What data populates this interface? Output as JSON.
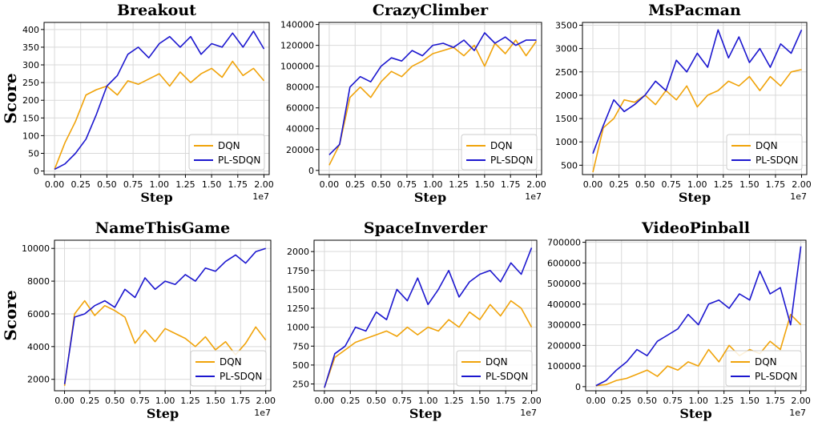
{
  "colors": {
    "dqn": "#f0a30a",
    "plsdqn": "#1c17cf",
    "grid": "#d9d9d9",
    "axis": "#000000"
  },
  "chart_data": [
    {
      "type": "line",
      "title": "Breakout",
      "xlabel": "Step",
      "ylabel": "Score",
      "x_exponent": "1e7",
      "xlim": [
        -0.1,
        2.05
      ],
      "ylim": [
        -10,
        420
      ],
      "xticks": [
        "0.00",
        "0.25",
        "0.50",
        "0.75",
        "1.00",
        "1.25",
        "1.50",
        "1.75",
        "2.00"
      ],
      "yticks": [
        0,
        50,
        100,
        150,
        200,
        250,
        300,
        350,
        400
      ],
      "legend_position": "lower-right",
      "x": [
        0,
        0.1,
        0.2,
        0.3,
        0.4,
        0.5,
        0.6,
        0.7,
        0.8,
        0.9,
        1.0,
        1.1,
        1.2,
        1.3,
        1.4,
        1.5,
        1.6,
        1.7,
        1.8,
        1.9,
        2.0
      ],
      "series": [
        {
          "name": "DQN",
          "values": [
            5,
            80,
            140,
            215,
            230,
            240,
            215,
            255,
            245,
            260,
            275,
            240,
            280,
            250,
            275,
            290,
            265,
            310,
            270,
            290,
            255
          ]
        },
        {
          "name": "PL-SDQN",
          "values": [
            5,
            20,
            50,
            90,
            160,
            240,
            270,
            330,
            350,
            320,
            360,
            380,
            350,
            380,
            330,
            360,
            350,
            390,
            350,
            395,
            345
          ]
        }
      ]
    },
    {
      "type": "line",
      "title": "CrazyClimber",
      "xlabel": "Step",
      "ylabel": "",
      "x_exponent": "1e7",
      "xlim": [
        -0.1,
        2.05
      ],
      "ylim": [
        -4000,
        142000
      ],
      "xticks": [
        "0.00",
        "0.25",
        "0.50",
        "0.75",
        "1.00",
        "1.25",
        "1.50",
        "1.75",
        "2.00"
      ],
      "yticks": [
        0,
        20000,
        40000,
        60000,
        80000,
        100000,
        120000,
        140000
      ],
      "legend_position": "lower-right",
      "x": [
        0,
        0.1,
        0.2,
        0.3,
        0.4,
        0.5,
        0.6,
        0.7,
        0.8,
        0.9,
        1.0,
        1.1,
        1.2,
        1.3,
        1.4,
        1.5,
        1.6,
        1.7,
        1.8,
        1.9,
        2.0
      ],
      "series": [
        {
          "name": "DQN",
          "values": [
            5000,
            25000,
            70000,
            80000,
            70000,
            85000,
            95000,
            90000,
            100000,
            105000,
            112000,
            115000,
            118000,
            110000,
            120000,
            100000,
            122000,
            112000,
            125000,
            110000,
            124000
          ]
        },
        {
          "name": "PL-SDQN",
          "values": [
            15000,
            25000,
            80000,
            90000,
            85000,
            100000,
            108000,
            105000,
            115000,
            110000,
            120000,
            122000,
            118000,
            125000,
            115000,
            132000,
            122000,
            128000,
            120000,
            125000,
            125000
          ]
        }
      ]
    },
    {
      "type": "line",
      "title": "MsPacman",
      "xlabel": "Step",
      "ylabel": "",
      "x_exponent": "1e7",
      "xlim": [
        -0.1,
        2.05
      ],
      "ylim": [
        300,
        3560
      ],
      "xticks": [
        "0.00",
        "0.25",
        "0.50",
        "0.75",
        "1.00",
        "1.25",
        "1.50",
        "1.75",
        "2.00"
      ],
      "yticks": [
        500,
        1000,
        1500,
        2000,
        2500,
        3000,
        3500
      ],
      "legend_position": "lower-right",
      "x": [
        0,
        0.1,
        0.2,
        0.3,
        0.4,
        0.5,
        0.6,
        0.7,
        0.8,
        0.9,
        1.0,
        1.1,
        1.2,
        1.3,
        1.4,
        1.5,
        1.6,
        1.7,
        1.8,
        1.9,
        2.0
      ],
      "series": [
        {
          "name": "DQN",
          "values": [
            350,
            1300,
            1500,
            1900,
            1850,
            2000,
            1800,
            2100,
            1900,
            2200,
            1750,
            2000,
            2100,
            2300,
            2200,
            2400,
            2100,
            2400,
            2200,
            2500,
            2550
          ]
        },
        {
          "name": "PL-SDQN",
          "values": [
            750,
            1350,
            1900,
            1650,
            1800,
            2000,
            2300,
            2100,
            2750,
            2500,
            2900,
            2600,
            3400,
            2800,
            3250,
            2700,
            3000,
            2600,
            3100,
            2900,
            3400
          ]
        }
      ]
    },
    {
      "type": "line",
      "title": "NameThisGame",
      "xlabel": "Step",
      "ylabel": "Score",
      "x_exponent": "1e7",
      "xlim": [
        -0.1,
        2.05
      ],
      "ylim": [
        1300,
        10500
      ],
      "xticks": [
        "0.00",
        "0.25",
        "0.50",
        "0.75",
        "1.00",
        "1.25",
        "1.50",
        "1.75",
        "2.00"
      ],
      "yticks": [
        2000,
        4000,
        6000,
        8000,
        10000
      ],
      "legend_position": "lower-right",
      "x": [
        0,
        0.1,
        0.2,
        0.3,
        0.4,
        0.5,
        0.6,
        0.7,
        0.8,
        0.9,
        1.0,
        1.1,
        1.2,
        1.3,
        1.4,
        1.5,
        1.6,
        1.7,
        1.8,
        1.9,
        2.0
      ],
      "series": [
        {
          "name": "DQN",
          "values": [
            1600,
            6000,
            6800,
            5900,
            6500,
            6200,
            5800,
            4200,
            5000,
            4300,
            5100,
            4800,
            4500,
            4000,
            4600,
            3800,
            4300,
            3500,
            4200,
            5200,
            4400
          ]
        },
        {
          "name": "PL-SDQN",
          "values": [
            1700,
            5800,
            6000,
            6500,
            6800,
            6400,
            7500,
            7000,
            8200,
            7500,
            8000,
            7800,
            8400,
            8000,
            8800,
            8600,
            9200,
            9600,
            9100,
            9800,
            10000
          ]
        }
      ]
    },
    {
      "type": "line",
      "title": "SpaceInverder",
      "xlabel": "Step",
      "ylabel": "",
      "x_exponent": "1e7",
      "xlim": [
        -0.1,
        2.05
      ],
      "ylim": [
        160,
        2150
      ],
      "xticks": [
        "0.00",
        "0.25",
        "0.50",
        "0.75",
        "1.00",
        "1.25",
        "1.50",
        "1.75",
        "2.00"
      ],
      "yticks": [
        250,
        500,
        750,
        1000,
        1250,
        1500,
        1750,
        2000
      ],
      "legend_position": "lower-right",
      "x": [
        0,
        0.1,
        0.2,
        0.3,
        0.4,
        0.5,
        0.6,
        0.7,
        0.8,
        0.9,
        1.0,
        1.1,
        1.2,
        1.3,
        1.4,
        1.5,
        1.6,
        1.7,
        1.8,
        1.9,
        2.0
      ],
      "series": [
        {
          "name": "DQN",
          "values": [
            200,
            600,
            700,
            800,
            850,
            900,
            950,
            880,
            1000,
            900,
            1000,
            950,
            1100,
            1000,
            1200,
            1100,
            1300,
            1150,
            1350,
            1250,
            1000
          ]
        },
        {
          "name": "PL-SDQN",
          "values": [
            200,
            650,
            750,
            1000,
            950,
            1200,
            1100,
            1500,
            1350,
            1650,
            1300,
            1500,
            1750,
            1400,
            1600,
            1700,
            1750,
            1600,
            1850,
            1700,
            2050
          ]
        }
      ]
    },
    {
      "type": "line",
      "title": "VideoPinball",
      "xlabel": "Step",
      "ylabel": "",
      "x_exponent": "1e7",
      "xlim": [
        -0.1,
        2.05
      ],
      "ylim": [
        -20000,
        710000
      ],
      "xticks": [
        "0.00",
        "0.25",
        "0.50",
        "0.75",
        "1.00",
        "1.25",
        "1.50",
        "1.75",
        "2.00"
      ],
      "yticks": [
        0,
        100000,
        200000,
        300000,
        400000,
        500000,
        600000,
        700000
      ],
      "legend_position": "lower-right",
      "x": [
        0,
        0.1,
        0.2,
        0.3,
        0.4,
        0.5,
        0.6,
        0.7,
        0.8,
        0.9,
        1.0,
        1.1,
        1.2,
        1.3,
        1.4,
        1.5,
        1.6,
        1.7,
        1.8,
        1.9,
        2.0
      ],
      "series": [
        {
          "name": "DQN",
          "values": [
            5000,
            10000,
            30000,
            40000,
            60000,
            80000,
            50000,
            100000,
            80000,
            120000,
            100000,
            180000,
            120000,
            200000,
            150000,
            180000,
            160000,
            220000,
            180000,
            350000,
            300000
          ]
        },
        {
          "name": "PL-SDQN",
          "values": [
            5000,
            30000,
            80000,
            120000,
            180000,
            150000,
            220000,
            250000,
            280000,
            350000,
            300000,
            400000,
            420000,
            380000,
            450000,
            420000,
            560000,
            450000,
            480000,
            300000,
            680000
          ]
        }
      ]
    }
  ]
}
